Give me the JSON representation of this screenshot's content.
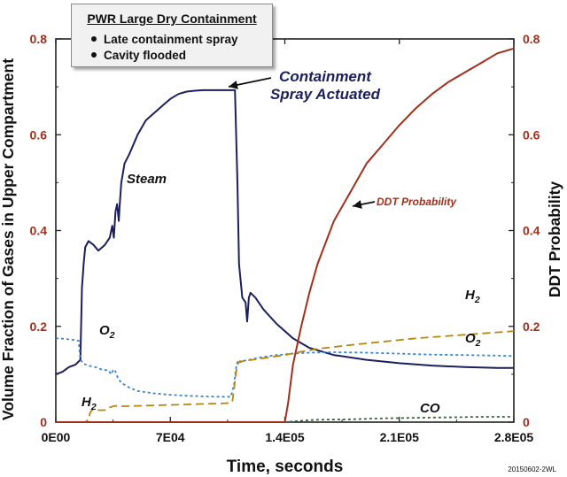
{
  "legend_box": {
    "title": "PWR Large Dry Containment",
    "items": [
      "Late containment spray",
      "Cavity flooded"
    ]
  },
  "chart_data": {
    "type": "line",
    "xlabel": "Time, seconds",
    "ylabel_left": "Volume Fraction of Gases in Upper Compartment",
    "ylabel_right": "DDT Probability",
    "xlim": [
      0,
      280000
    ],
    "ylim": [
      0,
      0.8
    ],
    "ylim_right": [
      0,
      0.8
    ],
    "x_ticks": [
      {
        "value": 0,
        "label": "0E00"
      },
      {
        "value": 70000,
        "label": "7E04"
      },
      {
        "value": 140000,
        "label": "1.4E05"
      },
      {
        "value": 210000,
        "label": "2.1E05"
      },
      {
        "value": 280000,
        "label": "2.8E05"
      }
    ],
    "y_ticks": [
      {
        "value": 0,
        "label": "0"
      },
      {
        "value": 0.2,
        "label": "0.2"
      },
      {
        "value": 0.4,
        "label": "0.4"
      },
      {
        "value": 0.6,
        "label": "0.6"
      },
      {
        "value": 0.8,
        "label": "0.8"
      }
    ],
    "grid": false,
    "series": [
      {
        "name": "Steam",
        "axis": "left",
        "color": "#1b1f5e",
        "style": "solid",
        "x": [
          0,
          4000,
          8000,
          12000,
          15000,
          16000,
          17000,
          18000,
          20000,
          23000,
          26000,
          30000,
          33000,
          34500,
          35500,
          36500,
          37500,
          38500,
          39000,
          40000,
          42000,
          45000,
          50000,
          55000,
          60000,
          65000,
          70000,
          75000,
          80000,
          85000,
          90000,
          100000,
          107000,
          109500,
          111000,
          112000,
          114000,
          116000,
          117000,
          118000,
          119000,
          122000,
          127000,
          135000,
          145000,
          155000,
          170000,
          190000,
          210000,
          230000,
          250000,
          270000,
          280000
        ],
        "values": [
          0.1,
          0.105,
          0.115,
          0.12,
          0.13,
          0.28,
          0.33,
          0.365,
          0.378,
          0.37,
          0.358,
          0.37,
          0.385,
          0.41,
          0.385,
          0.44,
          0.455,
          0.42,
          0.45,
          0.5,
          0.54,
          0.56,
          0.6,
          0.63,
          0.645,
          0.66,
          0.675,
          0.685,
          0.69,
          0.692,
          0.693,
          0.693,
          0.693,
          0.693,
          0.5,
          0.33,
          0.26,
          0.25,
          0.21,
          0.26,
          0.27,
          0.26,
          0.235,
          0.205,
          0.175,
          0.155,
          0.14,
          0.13,
          0.123,
          0.118,
          0.115,
          0.113,
          0.113
        ],
        "label": "Steam",
        "label_pos": [
          45000,
          0.5
        ]
      },
      {
        "name": "O2",
        "axis": "left",
        "color": "#3a82d4",
        "style": "dotted",
        "x": [
          0,
          5000,
          10000,
          14000,
          15000,
          17000,
          20000,
          24000,
          28000,
          32000,
          34000,
          35000,
          36000,
          37000,
          38000,
          40000,
          45000,
          50000,
          60000,
          70000,
          80000,
          90000,
          100000,
          107000,
          109000,
          110000,
          111000,
          112000,
          113000,
          115000,
          118000,
          125000,
          135000,
          145000,
          155000,
          170000,
          190000,
          210000,
          230000,
          250000,
          270000,
          280000
        ],
        "values": [
          0.175,
          0.174,
          0.172,
          0.17,
          0.13,
          0.122,
          0.118,
          0.115,
          0.11,
          0.108,
          0.1,
          0.108,
          0.11,
          0.1,
          0.092,
          0.082,
          0.072,
          0.065,
          0.06,
          0.057,
          0.055,
          0.054,
          0.053,
          0.053,
          0.08,
          0.11,
          0.125,
          0.13,
          0.125,
          0.128,
          0.13,
          0.135,
          0.14,
          0.143,
          0.145,
          0.146,
          0.145,
          0.143,
          0.141,
          0.14,
          0.139,
          0.138
        ]
      },
      {
        "name": "H2",
        "axis": "left",
        "color": "#b8860b",
        "style": "dashed",
        "x": [
          0,
          15000,
          18000,
          20000,
          21000,
          22000,
          28000,
          30000,
          32000,
          34000,
          36000,
          40000,
          50000,
          60000,
          70000,
          80000,
          90000,
          100000,
          107000,
          108000,
          109000,
          110000,
          111000,
          112000,
          115000,
          120000,
          130000,
          140000,
          150000,
          160000,
          180000,
          200000,
          220000,
          240000,
          260000,
          280000
        ],
        "values": [
          0,
          0,
          0,
          0.005,
          0.02,
          0.025,
          0.025,
          0.025,
          0.03,
          0.032,
          0.034,
          0.033,
          0.034,
          0.035,
          0.036,
          0.037,
          0.038,
          0.039,
          0.04,
          0.045,
          0.07,
          0.1,
          0.12,
          0.125,
          0.128,
          0.13,
          0.135,
          0.14,
          0.147,
          0.153,
          0.161,
          0.168,
          0.175,
          0.18,
          0.185,
          0.19
        ]
      },
      {
        "name": "CO",
        "axis": "left",
        "color": "#2e6b3a",
        "style": "dotted",
        "x": [
          0,
          100000,
          120000,
          140000,
          150000,
          160000,
          180000,
          200000,
          220000,
          240000,
          260000,
          280000
        ],
        "values": [
          0,
          0,
          0,
          0,
          0.003,
          0.005,
          0.006,
          0.008,
          0.009,
          0.01,
          0.011,
          0.011
        ]
      },
      {
        "name": "DDT Probability",
        "axis": "right",
        "color": "#a0301b",
        "style": "solid",
        "x": [
          0,
          140000,
          142000,
          145000,
          150000,
          155000,
          160000,
          170000,
          180000,
          190000,
          200000,
          210000,
          220000,
          230000,
          240000,
          250000,
          260000,
          270000,
          280000
        ],
        "values": [
          0,
          0,
          0.04,
          0.12,
          0.2,
          0.27,
          0.33,
          0.42,
          0.48,
          0.54,
          0.58,
          0.62,
          0.655,
          0.685,
          0.71,
          0.73,
          0.75,
          0.77,
          0.78
        ]
      }
    ],
    "annotations": [
      {
        "text": "Steam",
        "color": "#111111"
      },
      {
        "text": "O",
        "sub": "2",
        "color": "#111111"
      },
      {
        "text": "H",
        "sub": "2",
        "color": "#111111"
      },
      {
        "text": "H",
        "sub": "2",
        "color": "#111111"
      },
      {
        "text": "O",
        "sub": "2",
        "color": "#111111"
      },
      {
        "text": "CO",
        "color": "#111111"
      },
      {
        "text": "DDT Probability",
        "color": "#a0301b"
      },
      {
        "line1": "Containment",
        "line2": "Spray Actuated",
        "color": "#1b1f5e"
      }
    ],
    "footnote": "20150602-2WL",
    "axis_label_color_left": "#111111",
    "tick_color_left": "#a0301b",
    "tick_color_right": "#a0301b"
  }
}
